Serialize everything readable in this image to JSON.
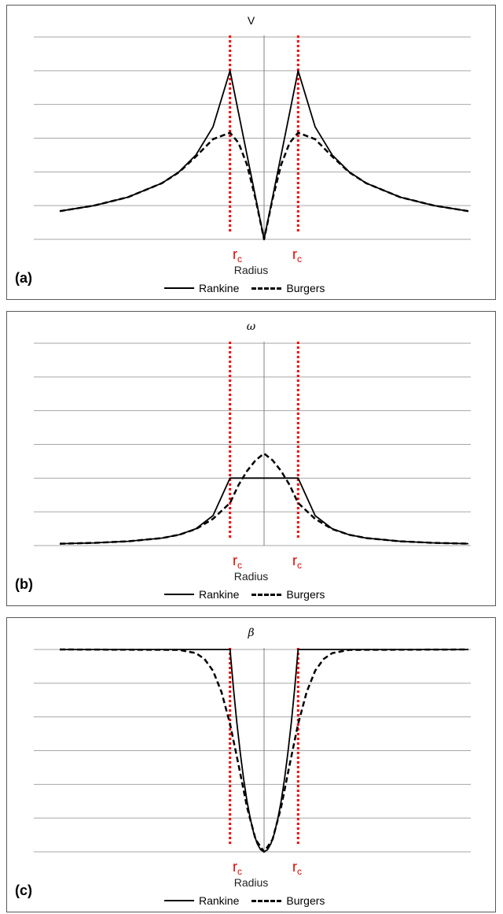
{
  "panels": [
    {
      "label": "(a)",
      "title": "V",
      "xlabel": "Radius",
      "rc": [
        "r",
        "c"
      ],
      "legend": [
        "Rankine",
        "Burgers"
      ]
    },
    {
      "label": "(b)",
      "title": "ω",
      "xlabel": "Radius",
      "rc": [
        "r",
        "c"
      ],
      "legend": [
        "Rankine",
        "Burgers"
      ]
    },
    {
      "label": "(c)",
      "title": "β",
      "xlabel": "Radius",
      "rc": [
        "r",
        "c"
      ],
      "legend": [
        "Rankine",
        "Burgers"
      ]
    }
  ],
  "chart_data": [
    {
      "type": "line",
      "title": "V",
      "xlabel": "Radius",
      "ylabel": "",
      "xlim": [
        -6,
        6
      ],
      "ylim": [
        0,
        1.2
      ],
      "grid": true,
      "legend_position": "bottom",
      "core_radius": 1,
      "series": [
        {
          "name": "Rankine",
          "x": [
            -6,
            -5,
            -4,
            -3,
            -2.5,
            -2,
            -1.5,
            -1,
            -0.5,
            0,
            0.5,
            1,
            1.5,
            2,
            2.5,
            3,
            4,
            5,
            6
          ],
          "y": [
            0.167,
            0.2,
            0.25,
            0.333,
            0.4,
            0.5,
            0.667,
            1,
            0.5,
            0,
            0.5,
            1,
            0.667,
            0.5,
            0.4,
            0.333,
            0.25,
            0.2,
            0.167
          ]
        },
        {
          "name": "Burgers",
          "x": [
            -6,
            -5,
            -4,
            -3,
            -2.5,
            -2,
            -1.5,
            -1,
            -0.75,
            -0.5,
            -0.25,
            0,
            0.25,
            0.5,
            0.75,
            1,
            1.5,
            2,
            2.5,
            3,
            4,
            5,
            6
          ],
          "y": [
            0.167,
            0.2,
            0.25,
            0.333,
            0.398,
            0.491,
            0.594,
            0.632,
            0.572,
            0.442,
            0.239,
            0,
            0.239,
            0.442,
            0.572,
            0.632,
            0.594,
            0.491,
            0.398,
            0.333,
            0.25,
            0.2,
            0.167
          ]
        }
      ]
    },
    {
      "type": "line",
      "title": "ω",
      "xlabel": "Radius",
      "ylabel": "",
      "xlim": [
        -6,
        6
      ],
      "ylim": [
        0,
        3.0
      ],
      "grid": true,
      "legend_position": "bottom",
      "core_radius": 1,
      "series": [
        {
          "name": "Rankine",
          "x": [
            -6,
            -5,
            -4,
            -3,
            -2.5,
            -2,
            -1.5,
            -1,
            0,
            1,
            1.5,
            2,
            2.5,
            3,
            4,
            5,
            6
          ],
          "y": [
            0.028,
            0.04,
            0.063,
            0.111,
            0.16,
            0.25,
            0.444,
            1,
            1,
            1,
            0.444,
            0.25,
            0.16,
            0.111,
            0.063,
            0.04,
            0.028
          ]
        },
        {
          "name": "Burgers",
          "x": [
            -6,
            -5,
            -4,
            -3,
            -2.5,
            -2,
            -1.5,
            -1,
            -0.75,
            -0.5,
            -0.25,
            0,
            0.25,
            0.5,
            0.75,
            1,
            1.5,
            2,
            2.5,
            3,
            4,
            5,
            6
          ],
          "y": [
            0.028,
            0.04,
            0.063,
            0.111,
            0.16,
            0.245,
            0.396,
            0.632,
            0.898,
            1.106,
            1.265,
            1.365,
            1.265,
            1.106,
            0.898,
            0.632,
            0.396,
            0.245,
            0.16,
            0.111,
            0.063,
            0.04,
            0.028
          ]
        }
      ]
    },
    {
      "type": "line",
      "title": "β",
      "xlabel": "Radius",
      "ylabel": "",
      "xlim": [
        -6,
        6
      ],
      "ylim": [
        0,
        1.0
      ],
      "grid": true,
      "legend_position": "bottom",
      "core_radius": 1,
      "series": [
        {
          "name": "Rankine",
          "x": [
            -6,
            -2,
            -1,
            -0.9,
            -0.8,
            -0.7,
            -0.6,
            -0.5,
            -0.4,
            -0.3,
            -0.2,
            -0.1,
            0,
            0.1,
            0.2,
            0.3,
            0.4,
            0.5,
            0.6,
            0.7,
            0.8,
            0.9,
            1,
            2,
            6
          ],
          "y": [
            1,
            1,
            1,
            0.81,
            0.64,
            0.49,
            0.36,
            0.25,
            0.16,
            0.09,
            0.04,
            0.01,
            0,
            0.01,
            0.04,
            0.09,
            0.16,
            0.25,
            0.36,
            0.49,
            0.64,
            0.81,
            1,
            1,
            1
          ]
        },
        {
          "name": "Burgers",
          "x": [
            -6,
            -2.5,
            -2,
            -1.75,
            -1.5,
            -1.25,
            -1,
            -0.75,
            -0.5,
            -0.25,
            0,
            0.25,
            0.5,
            0.75,
            1,
            1.25,
            1.5,
            1.75,
            2,
            2.5,
            6
          ],
          "y": [
            1,
            0.998,
            0.982,
            0.953,
            0.895,
            0.79,
            0.632,
            0.43,
            0.221,
            0.061,
            0,
            0.061,
            0.221,
            0.43,
            0.632,
            0.79,
            0.895,
            0.953,
            0.982,
            0.998,
            1
          ]
        }
      ]
    }
  ]
}
